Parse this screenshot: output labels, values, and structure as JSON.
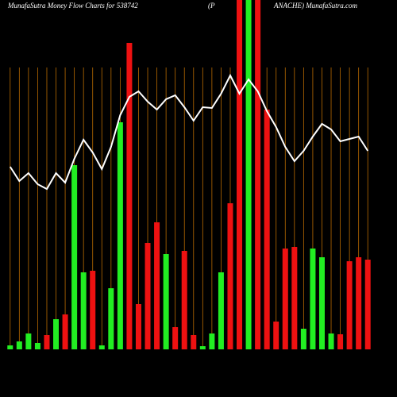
{
  "chart_data": {
    "type": "bar",
    "title": "MunafaSutra  Money Flow  Charts for 538742",
    "subtitle": "(P",
    "source": "ANACHE) MunafaSutra.com",
    "values": [
      5,
      10,
      20,
      8,
      18,
      38,
      44,
      232,
      97,
      99,
      5,
      77,
      286,
      386,
      57,
      134,
      160,
      120,
      28,
      124,
      18,
      4,
      20,
      97,
      184,
      440,
      440,
      440,
      302,
      35,
      127,
      129,
      26,
      127,
      116,
      20,
      19,
      111,
      116,
      113
    ],
    "colors": [
      "#22ee22",
      "#22ee22",
      "#22ee22",
      "#22ee22",
      "#ee1111",
      "#22ee22",
      "#ee1111",
      "#22ee22",
      "#22ee22",
      "#ee1111",
      "#22ee22",
      "#22ee22",
      "#22ee22",
      "#ee1111",
      "#ee1111",
      "#ee1111",
      "#ee1111",
      "#22ee22",
      "#ee1111",
      "#ee1111",
      "#ee1111",
      "#22ee22",
      "#22ee22",
      "#22ee22",
      "#ee1111",
      "#ee1111",
      "#22ee22",
      "#ee1111",
      "#ee1111",
      "#ee1111",
      "#ee1111",
      "#ee1111",
      "#22ee22",
      "#22ee22",
      "#22ee22",
      "#22ee22",
      "#ee1111",
      "#ee1111",
      "#ee1111",
      "#ee1111"
    ],
    "series": [
      {
        "color": "#ffffff",
        "values": [
          230,
          212,
          222,
          208,
          202,
          222,
          210,
          240,
          264,
          248,
          227,
          255,
          295,
          318,
          325,
          312,
          302,
          315,
          320,
          305,
          288,
          305,
          304,
          322,
          345,
          322,
          340,
          325,
          300,
          280,
          255,
          237,
          250,
          268,
          284,
          277,
          262,
          265,
          268,
          250
        ]
      }
    ],
    "ylim": [
      0,
      440
    ]
  }
}
